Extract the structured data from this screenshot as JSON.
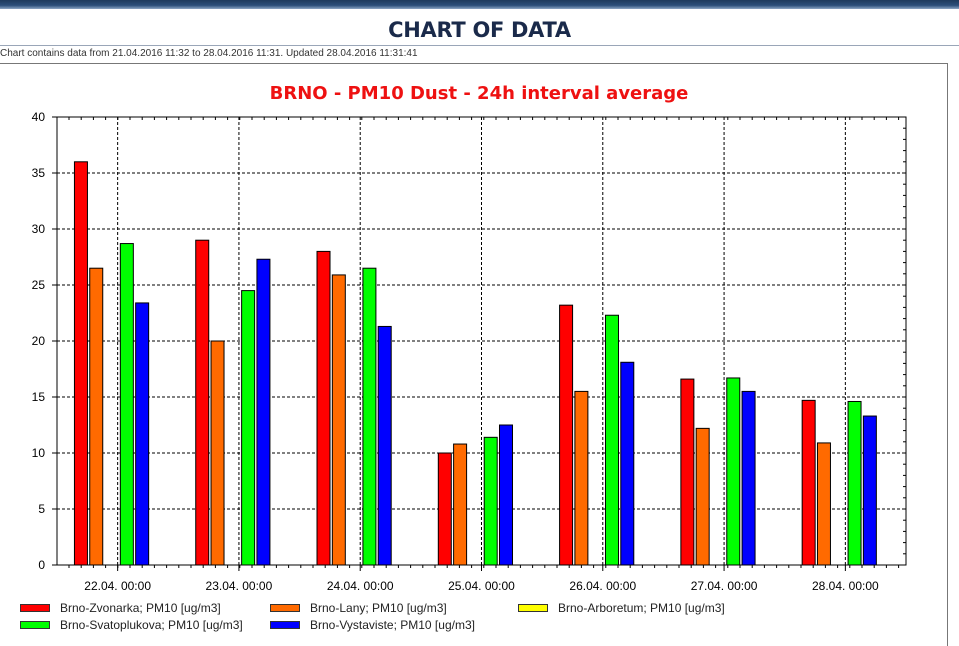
{
  "page": {
    "title": "CHART OF DATA",
    "info": "Chart contains data from 21.04.2016 11:32 to 28.04.2016 11:31. Updated 28.04.2016 11:31:41"
  },
  "chart_data": {
    "type": "bar",
    "title": "BRNO - PM10 Dust - 24h interval average",
    "xlabel": "",
    "ylabel": "",
    "ylim": [
      0,
      40
    ],
    "yticks": [
      0,
      5,
      10,
      15,
      20,
      25,
      30,
      35,
      40
    ],
    "grid": true,
    "legend_position": "bottom",
    "categories": [
      "22.04. 00:00",
      "23.04. 00:00",
      "24.04. 00:00",
      "25.04. 00:00",
      "26.04. 00:00",
      "27.04. 00:00",
      "28.04. 00:00"
    ],
    "series": [
      {
        "name": "Brno-Zvonarka; PM10 [ug/m3]",
        "color": "#ff0000",
        "values": [
          36.0,
          29.0,
          28.0,
          10.0,
          23.2,
          16.6,
          14.7
        ]
      },
      {
        "name": "Brno-Lany; PM10 [ug/m3]",
        "color": "#ff6a00",
        "values": [
          26.5,
          20.0,
          25.9,
          10.8,
          15.5,
          12.2,
          10.9
        ]
      },
      {
        "name": "Brno-Arboretum; PM10 [ug/m3]",
        "color": "#ffff00",
        "values": [
          null,
          null,
          null,
          null,
          null,
          null,
          null
        ]
      },
      {
        "name": "Brno-Svatoplukova; PM10 [ug/m3]",
        "color": "#00ff00",
        "values": [
          28.7,
          24.5,
          26.5,
          11.4,
          22.3,
          16.7,
          14.6
        ]
      },
      {
        "name": "Brno-Vystaviste; PM10 [ug/m3]",
        "color": "#0000ff",
        "values": [
          23.4,
          27.3,
          21.3,
          12.5,
          18.1,
          15.5,
          13.3
        ]
      }
    ]
  }
}
